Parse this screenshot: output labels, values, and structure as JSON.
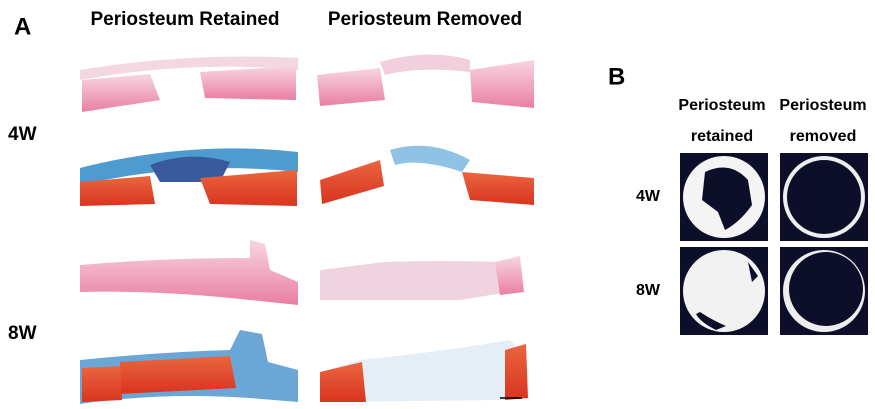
{
  "panel_a": {
    "label": "A",
    "columns": [
      "Periosteum Retained",
      "Periosteum Removed"
    ],
    "rows": [
      "4W",
      "8W"
    ]
  },
  "panel_b": {
    "label": "B",
    "columns": [
      [
        "Periosteum",
        "retained"
      ],
      [
        "Periosteum",
        "removed"
      ]
    ],
    "rows": [
      "4W",
      "8W"
    ]
  }
}
